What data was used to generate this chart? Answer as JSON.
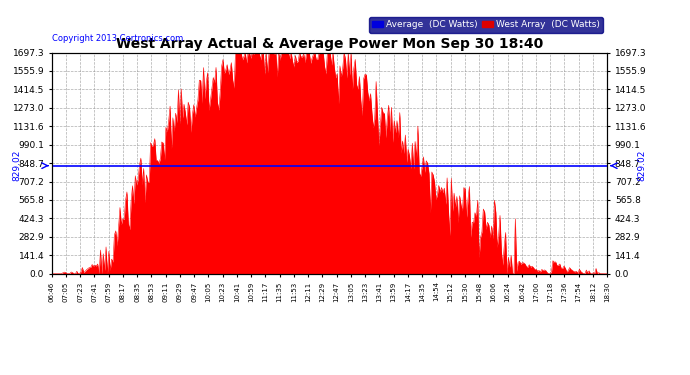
{
  "title": "West Array Actual & Average Power Mon Sep 30 18:40",
  "copyright": "Copyright 2013 Certronics.com",
  "legend_labels": [
    "Average  (DC Watts)",
    "West Array  (DC Watts)"
  ],
  "legend_colors": [
    "#0000dd",
    "#dd0000"
  ],
  "average_value": 829.02,
  "y_max": 1697.3,
  "y_ticks": [
    0.0,
    141.4,
    282.9,
    424.3,
    565.8,
    707.2,
    848.7,
    990.1,
    1131.6,
    1273.0,
    1414.5,
    1555.9,
    1697.3
  ],
  "average_label": "829.02",
  "background_color": "#ffffff",
  "fill_color": "#ff0000",
  "avg_line_color": "#0000ff",
  "grid_color": "#aaaaaa",
  "x_labels": [
    "06:46",
    "07:05",
    "07:23",
    "07:41",
    "07:59",
    "08:17",
    "08:35",
    "08:53",
    "09:11",
    "09:29",
    "09:47",
    "10:05",
    "10:23",
    "10:41",
    "10:59",
    "11:17",
    "11:35",
    "11:53",
    "12:11",
    "12:29",
    "12:47",
    "13:05",
    "13:23",
    "13:41",
    "13:59",
    "14:17",
    "14:35",
    "14:54",
    "15:12",
    "15:30",
    "15:48",
    "16:06",
    "16:24",
    "16:42",
    "17:00",
    "17:18",
    "17:36",
    "17:54",
    "18:12",
    "18:30"
  ]
}
